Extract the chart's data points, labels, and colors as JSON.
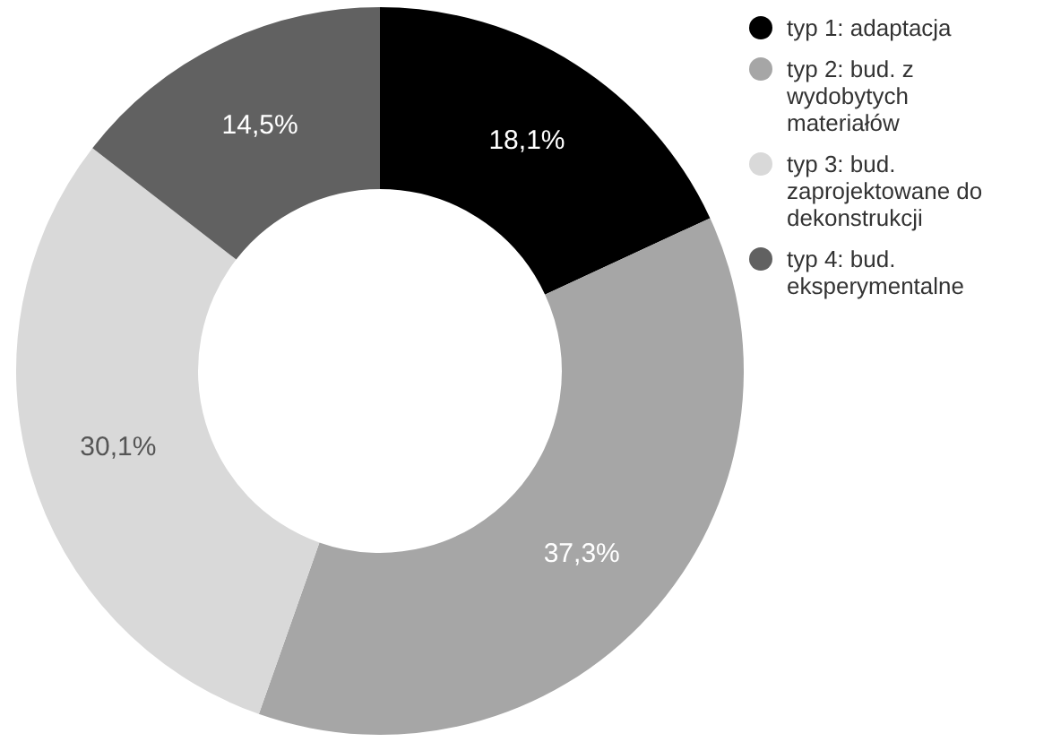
{
  "chart_data": {
    "type": "donut",
    "categories": [
      "typ 1: adaptacja",
      "typ 2: bud. z wydobytych materiałów",
      "typ 3: bud. zaprojektowane do dekonstrukcji",
      "typ 4: bud. eksperymentalne"
    ],
    "values": [
      18.1,
      37.3,
      30.1,
      14.5
    ],
    "colors": [
      "#000000",
      "#a6a6a6",
      "#d9d9d9",
      "#616161"
    ],
    "value_labels": [
      "18,1%",
      "37,3%",
      "30,1%",
      "14,5%"
    ],
    "legend": "top right"
  }
}
